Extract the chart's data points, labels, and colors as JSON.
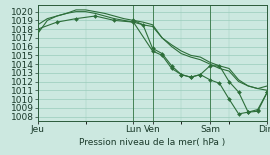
{
  "background_color": "#cce8e0",
  "grid_color": "#99ccbb",
  "line_color": "#2d6e3a",
  "marker_color": "#2d6e3a",
  "xlabel_text": "Pression niveau de la mer( hPa )",
  "ylim": [
    1007.5,
    1020.8
  ],
  "yticks": [
    1008,
    1009,
    1010,
    1011,
    1012,
    1013,
    1014,
    1015,
    1016,
    1017,
    1018,
    1019,
    1020
  ],
  "xtick_labels": [
    "Jeu",
    "Lun",
    "Ven",
    "Sam",
    "Dim"
  ],
  "xtick_positions": [
    0,
    10,
    12,
    18,
    24
  ],
  "xlim": [
    0,
    24
  ],
  "vlines_x": [
    10,
    12,
    18,
    24
  ],
  "line1_x": [
    0,
    1,
    2,
    3,
    4,
    5,
    6,
    7,
    8,
    9,
    10,
    11,
    12,
    13,
    14,
    15,
    16,
    17,
    18,
    19,
    20,
    21,
    22,
    23,
    24
  ],
  "line1_y": [
    1017.5,
    1019.0,
    1019.5,
    1019.8,
    1020.0,
    1020.0,
    1019.8,
    1019.5,
    1019.2,
    1019.0,
    1018.8,
    1018.5,
    1018.3,
    1017.0,
    1016.2,
    1015.5,
    1015.0,
    1014.8,
    1014.2,
    1013.8,
    1013.5,
    1012.2,
    1011.5,
    1011.2,
    1011.0
  ],
  "line2_x": [
    0,
    1,
    2,
    3,
    4,
    5,
    6,
    7,
    8,
    9,
    10,
    11,
    12,
    13,
    14,
    15,
    16,
    17,
    18,
    19,
    20,
    21,
    22,
    23,
    24
  ],
  "line2_y": [
    1018.5,
    1019.2,
    1019.5,
    1019.8,
    1020.2,
    1020.2,
    1020.0,
    1019.8,
    1019.5,
    1019.2,
    1019.0,
    1018.8,
    1018.5,
    1017.0,
    1016.0,
    1015.2,
    1014.8,
    1014.5,
    1014.0,
    1013.5,
    1013.2,
    1012.0,
    1011.5,
    1011.2,
    1011.5
  ],
  "line3_x": [
    0,
    2,
    4,
    6,
    8,
    10,
    12,
    13,
    14,
    15,
    16,
    17,
    18,
    19,
    20,
    21,
    22,
    23,
    24
  ],
  "line3_y": [
    1018.0,
    1018.8,
    1019.2,
    1019.5,
    1019.0,
    1018.8,
    1015.5,
    1015.0,
    1013.5,
    1012.8,
    1012.5,
    1012.8,
    1012.2,
    1011.8,
    1010.0,
    1008.3,
    1008.5,
    1008.6,
    1010.8
  ],
  "line4_x": [
    10,
    11,
    12,
    13,
    14,
    15,
    16,
    17,
    18,
    19,
    20,
    21,
    22,
    23,
    24
  ],
  "line4_y": [
    1019.0,
    1018.5,
    1015.8,
    1015.2,
    1013.8,
    1012.8,
    1012.5,
    1012.8,
    1013.8,
    1013.8,
    1012.0,
    1010.8,
    1008.5,
    1008.8,
    1010.8
  ],
  "fontsize": 6.5
}
